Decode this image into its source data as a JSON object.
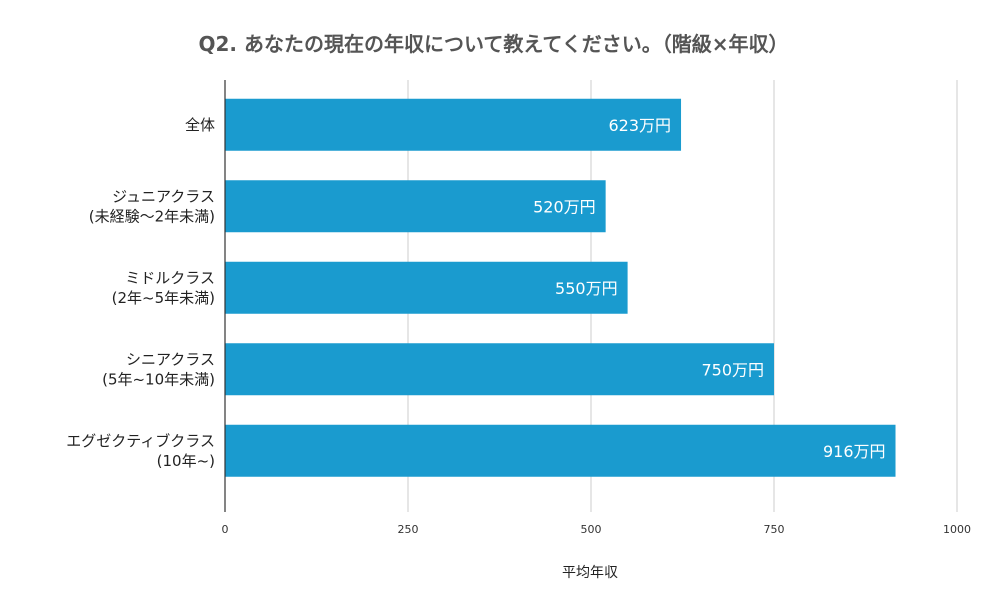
{
  "chart_data": {
    "type": "bar",
    "orientation": "horizontal",
    "title": "Q2. あなたの現在の年収について教えてください。（階級×年収）",
    "categories": [
      [
        "全体"
      ],
      [
        "ジュニアクラス",
        "(未経験～2年未満)"
      ],
      [
        "ミドルクラス",
        "(2年~5年未満)"
      ],
      [
        "シニアクラス",
        "(5年~10年未満)"
      ],
      [
        "エグゼクティブクラス",
        "(10年~)"
      ]
    ],
    "values": [
      623,
      520,
      550,
      750,
      916
    ],
    "data_labels": [
      "623万円",
      "520万円",
      "550万円",
      "750万円",
      "916万円"
    ],
    "xlabel": "平均年収",
    "ylabel": "",
    "xlim": [
      0,
      1000
    ],
    "xticks": [
      0,
      250,
      500,
      750,
      1000
    ],
    "grid": true,
    "bar_color": "#1a9bcf",
    "grid_color": "#cccccc",
    "axis_color": "#333333"
  }
}
